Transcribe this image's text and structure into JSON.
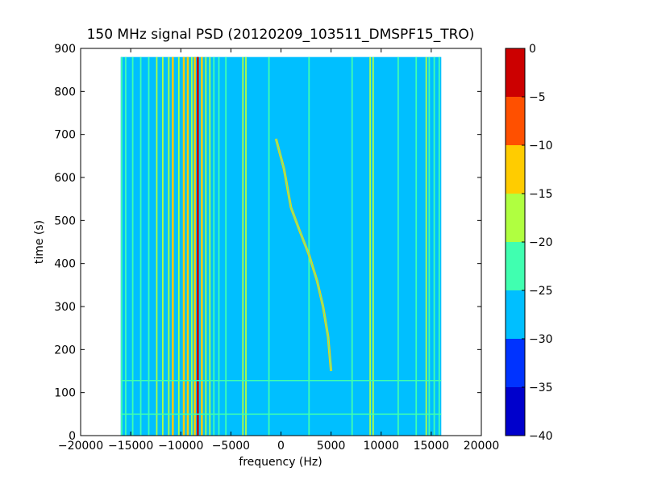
{
  "chart_data": {
    "type": "heatmap",
    "title": "150 MHz signal PSD (20120209_103511_DMSPF15_TRO)",
    "xlabel": "frequency (Hz)",
    "ylabel": "time (s)",
    "xlim": [
      -20000,
      20000
    ],
    "ylim": [
      0,
      900
    ],
    "x_ticks": [
      -20000,
      -15000,
      -10000,
      -5000,
      0,
      5000,
      10000,
      15000,
      20000
    ],
    "x_tick_labels": [
      "−20000",
      "−15000",
      "−10000",
      "−5000",
      "0",
      "5000",
      "10000",
      "15000",
      "20000"
    ],
    "y_ticks": [
      0,
      100,
      200,
      300,
      400,
      500,
      600,
      700,
      800,
      900
    ],
    "y_tick_labels": [
      "0",
      "100",
      "200",
      "300",
      "400",
      "500",
      "600",
      "700",
      "800",
      "900"
    ],
    "data_extent": {
      "x": [
        -16000,
        16000
      ],
      "y": [
        0,
        880
      ]
    },
    "background_level": -27.5,
    "colorbar": {
      "levels": [
        -40,
        -35,
        -30,
        -25,
        -20,
        -15,
        -10,
        -5,
        0
      ],
      "tick_labels": [
        "−40",
        "−35",
        "−30",
        "−25",
        "−20",
        "−15",
        "−10",
        "−5",
        "0"
      ],
      "colors": [
        "#0000cc",
        "#0033ff",
        "#00bfff",
        "#40ffb0",
        "#b0ff40",
        "#ffcc00",
        "#ff5000",
        "#cc0000"
      ]
    },
    "vertical_lines": [
      {
        "freq": -15900,
        "level": -22
      },
      {
        "freq": -15500,
        "level": -22
      },
      {
        "freq": -14800,
        "level": -22
      },
      {
        "freq": -14000,
        "level": -22
      },
      {
        "freq": -13200,
        "level": -22
      },
      {
        "freq": -12400,
        "level": -17
      },
      {
        "freq": -11800,
        "level": -17
      },
      {
        "freq": -11200,
        "level": -17
      },
      {
        "freq": -10800,
        "level": -12
      },
      {
        "freq": -10200,
        "level": -17
      },
      {
        "freq": -9700,
        "level": -12
      },
      {
        "freq": -9300,
        "level": -12
      },
      {
        "freq": -8900,
        "level": -17
      },
      {
        "freq": -8600,
        "level": -12
      },
      {
        "freq": -8300,
        "level": -2
      },
      {
        "freq": -7900,
        "level": -12
      },
      {
        "freq": -7500,
        "level": -17
      },
      {
        "freq": -7100,
        "level": -17
      },
      {
        "freq": -6700,
        "level": -22
      },
      {
        "freq": -6200,
        "level": -22
      },
      {
        "freq": -5500,
        "level": -22
      },
      {
        "freq": -3800,
        "level": -17
      },
      {
        "freq": -3500,
        "level": -17
      },
      {
        "freq": -1200,
        "level": -22
      },
      {
        "freq": 2800,
        "level": -22
      },
      {
        "freq": 7100,
        "level": -22
      },
      {
        "freq": 8900,
        "level": -17
      },
      {
        "freq": 9200,
        "level": -17
      },
      {
        "freq": 11700,
        "level": -22
      },
      {
        "freq": 13500,
        "level": -22
      },
      {
        "freq": 14500,
        "level": -17
      },
      {
        "freq": 14800,
        "level": -22
      },
      {
        "freq": 15300,
        "level": -22
      },
      {
        "freq": 15800,
        "level": -22
      }
    ],
    "horizontal_lines": [
      {
        "time": 50,
        "from": -16000,
        "to": 16000,
        "level": -22
      },
      {
        "time": 128,
        "from": -16000,
        "to": 16000,
        "level": -22
      }
    ],
    "chirp": {
      "level": -12,
      "points": [
        {
          "freq": 5000,
          "time": 150
        },
        {
          "freq": 4700,
          "time": 230
        },
        {
          "freq": 4200,
          "time": 300
        },
        {
          "freq": 3600,
          "time": 360
        },
        {
          "freq": 2800,
          "time": 420
        },
        {
          "freq": 1800,
          "time": 480
        },
        {
          "freq": 1000,
          "time": 530
        },
        {
          "freq": 300,
          "time": 620
        },
        {
          "freq": -500,
          "time": 690
        }
      ]
    }
  }
}
